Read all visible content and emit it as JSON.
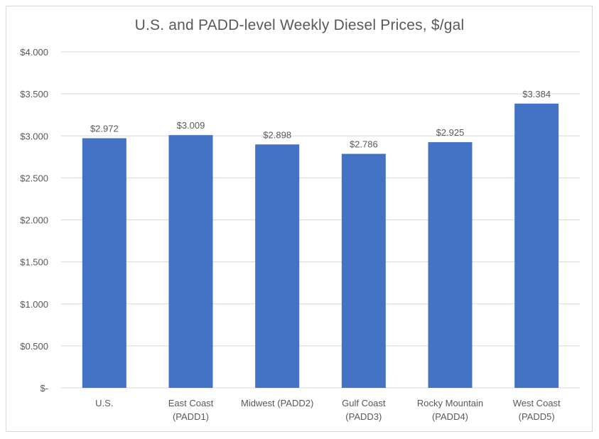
{
  "chart_data": {
    "type": "bar",
    "title": "U.S. and PADD-level  Weekly Diesel Prices, $/gal",
    "categories": [
      [
        "U.S."
      ],
      [
        "East Coast",
        "(PADD1)"
      ],
      [
        "Midwest (PADD2)"
      ],
      [
        "Gulf Coast",
        "(PADD3)"
      ],
      [
        "Rocky Mountain",
        "(PADD4)"
      ],
      [
        "West Coast",
        "(PADD5)"
      ]
    ],
    "values": [
      2.972,
      3.009,
      2.898,
      2.786,
      2.925,
      3.384
    ],
    "data_labels": [
      "$2.972",
      "$3.009",
      "$2.898",
      "$2.786",
      "$2.925",
      "$3.384"
    ],
    "yticks": [
      0,
      0.5,
      1.0,
      1.5,
      2.0,
      2.5,
      3.0,
      3.5,
      4.0
    ],
    "ytick_labels": [
      "$-",
      "$0.500",
      "$1.000",
      "$1.500",
      "$2.000",
      "$2.500",
      "$3.000",
      "$3.500",
      "$4.000"
    ],
    "ylim": [
      0,
      4
    ],
    "xlabel": "",
    "ylabel": "",
    "grid": true,
    "bar_color": "#4472c4",
    "grid_color": "#d9d9d9"
  }
}
